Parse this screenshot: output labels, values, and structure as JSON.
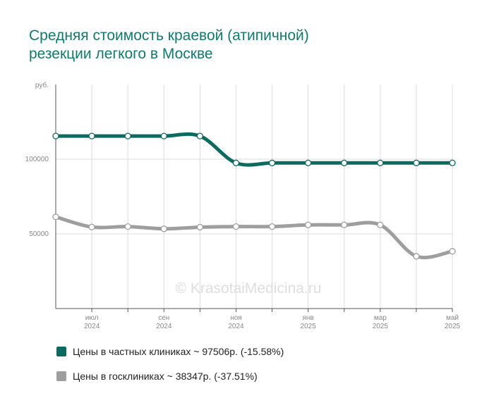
{
  "title_lines": [
    "Средняя стоимость краевой (атипичной)",
    "резекции легкого в Москве"
  ],
  "watermark": "© KrasotaiMedicina.ru",
  "legend": [
    {
      "label": "Цены в частных клиниках ~ 97506р. (-15.58%)",
      "color": "#0b6b60"
    },
    {
      "label": "Цены в госклиниках ~ 38347р. (-37.51%)",
      "color": "#9e9e9e"
    }
  ],
  "chart_data": {
    "type": "line",
    "title": "Средняя стоимость краевой (атипичной) резекции легкого в Москве",
    "ylabel": "руб.",
    "ylim": [
      0,
      150000
    ],
    "yticks": [
      50000,
      100000
    ],
    "ytick_labels": [
      "50000",
      "100000"
    ],
    "x_points": 12,
    "xtick_labels": [
      {
        "index": 1,
        "line1": "июл",
        "line2": "2024"
      },
      {
        "index": 3,
        "line1": "сен",
        "line2": "2024"
      },
      {
        "index": 5,
        "line1": "ноя",
        "line2": "2024"
      },
      {
        "index": 7,
        "line1": "янв",
        "line2": "2025"
      },
      {
        "index": 9,
        "line1": "мар",
        "line2": "2025"
      },
      {
        "index": 11,
        "line1": "май",
        "line2": "2025"
      }
    ],
    "grid": true,
    "series": [
      {
        "name": "Цены в частных клиниках",
        "color": "#0b6b60",
        "values": [
          115500,
          115500,
          115500,
          115500,
          115500,
          97500,
          97500,
          97500,
          97500,
          97500,
          97500,
          97506
        ]
      },
      {
        "name": "Цены в госклиниках",
        "color": "#9e9e9e",
        "values": [
          61400,
          54600,
          54900,
          53400,
          54500,
          54900,
          54900,
          56000,
          56000,
          56000,
          35000,
          38347
        ]
      }
    ]
  }
}
